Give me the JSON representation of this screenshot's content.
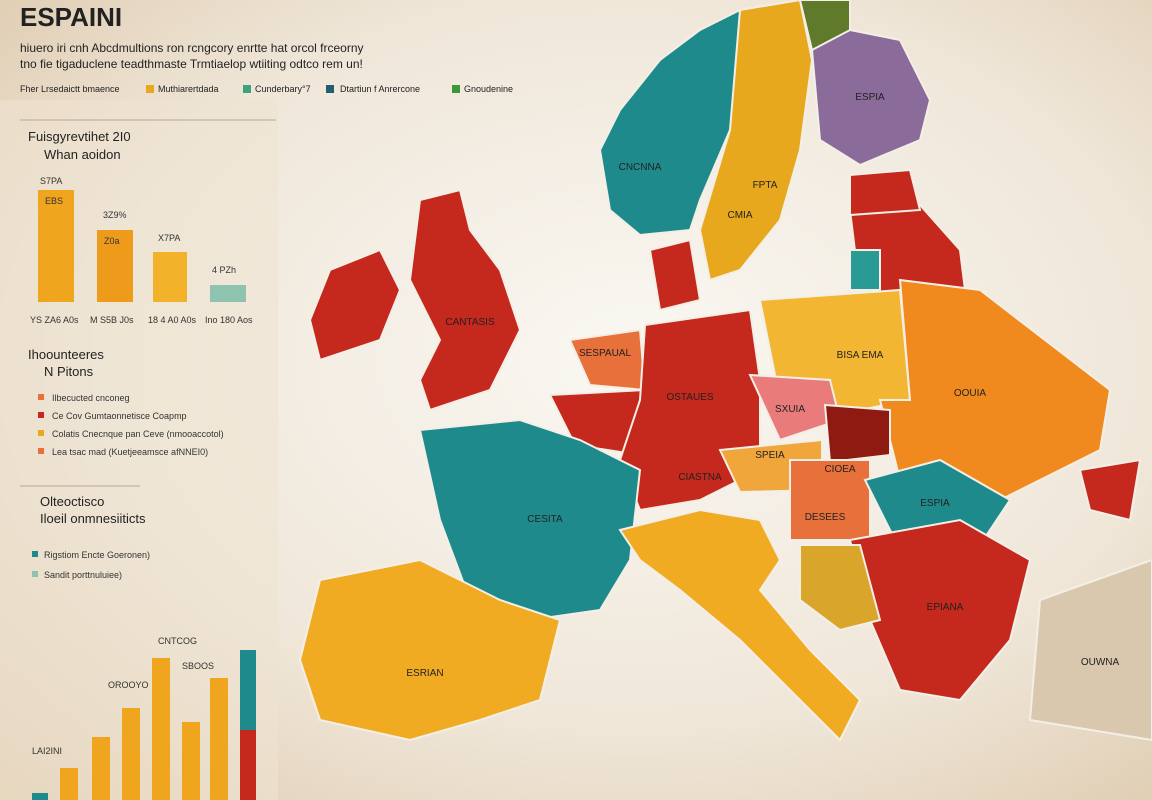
{
  "header": {
    "title": "ESPAINI",
    "subtitle_lines": [
      "hiuero iri cnh Abcdmultions ron rcngcory enrtte hat orcol frceorny",
      "tno fie tigaduclene teadthmaste Trmtiaelop wtiiting odtco rem un!"
    ]
  },
  "legend": {
    "items": [
      "Fher Lrsedaictt bmaence",
      "Muthiarertdada",
      "Cunderbary°7",
      "Dtartiun f Anrercone",
      "Gnoudenine"
    ]
  },
  "panel_growth": {
    "title": "Fuisgyrevtihet 2I0",
    "subtitle": "Whan aoidon",
    "bar_labels": [
      "S7PA",
      "EBS",
      "3Z9%",
      "Z0a",
      "X7PA",
      "4 PZh"
    ],
    "axis_labels": [
      "YS ZA6 A0s",
      "M S5B J0s",
      "18 4 A0 A0s",
      "Ino 180 Aos"
    ]
  },
  "panel_items": {
    "title": "Ihoounteeres",
    "subtitle": "N Pitons",
    "items": [
      "Ilbecucted cnconeg",
      "Ce Cov Gumtaonnetisce Coapmp",
      "Colatis Cnecnque pan Ceve (nmooaccotol)",
      "Lea tsac mad (Kuetjeeamsce afNNEI0)"
    ]
  },
  "panel_notes": {
    "title": "Olteoctisco",
    "subtitle": "Iloeil onmnesiiticts",
    "items": [
      "Rigstiom Encte Goeronen)",
      "Sandit porttnuluiee)"
    ]
  },
  "panel_bottom": {
    "labels": [
      "CNTCOG",
      "OROOYO",
      "SBOOS",
      "LAI2INI"
    ]
  },
  "map": {
    "labels": [
      "ESPIA",
      "FPTA",
      "CMIA",
      "CNCNNA",
      "BISA EMA",
      "SXUIA",
      "OSTAUES",
      "CIASTNA",
      "SPEIA",
      "CIOEA",
      "CESITA",
      "DESEES",
      "OOUIA",
      "ESPIA",
      "ESRIAN",
      "CANTASIS",
      "OUWNA",
      "SESPAUAL",
      "EPIANA"
    ]
  }
}
